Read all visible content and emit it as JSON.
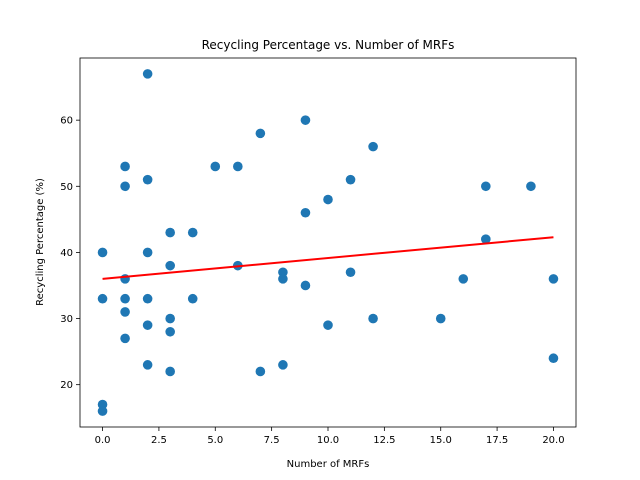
{
  "chart_data": {
    "type": "scatter",
    "title": "Recycling Percentage vs. Number of MRFs",
    "xlabel": "Number of MRFs",
    "ylabel": "Recycling Percentage (%)",
    "xlim": [
      -1,
      21
    ],
    "ylim": [
      13.6,
      69.4
    ],
    "xticks": [
      0,
      2.5,
      5,
      7.5,
      10,
      12.5,
      15,
      17.5,
      20
    ],
    "xtick_labels": [
      "0.0",
      "2.5",
      "5.0",
      "7.5",
      "10.0",
      "12.5",
      "15.0",
      "17.5",
      "20.0"
    ],
    "yticks": [
      20,
      30,
      40,
      50,
      60
    ],
    "ytick_labels": [
      "20",
      "30",
      "40",
      "50",
      "60"
    ],
    "grid": false,
    "point_color": "#1f77b4",
    "trend_color": "#ff0000",
    "x": [
      2,
      9,
      7,
      12,
      5,
      6,
      1,
      1,
      19,
      17,
      11,
      2,
      10,
      9,
      3,
      4,
      17,
      0,
      2,
      6,
      3,
      8,
      8,
      11,
      1,
      16,
      20,
      0,
      1,
      2,
      4,
      9,
      1,
      12,
      15,
      10,
      2,
      3,
      3,
      1,
      20,
      2,
      3,
      7,
      8,
      0,
      0
    ],
    "y": [
      67,
      60,
      58,
      56,
      53,
      53,
      53,
      50,
      50,
      50,
      51,
      51,
      48,
      46,
      43,
      43,
      42,
      40,
      40,
      38,
      38,
      37,
      36,
      37,
      36,
      36,
      36,
      33,
      33,
      33,
      33,
      35,
      31,
      30,
      30,
      29,
      29,
      30,
      28,
      27,
      24,
      23,
      22,
      22,
      23,
      17,
      16
    ],
    "trend_line": {
      "x": [
        0,
        20
      ],
      "y": [
        36.0,
        42.3
      ]
    }
  }
}
